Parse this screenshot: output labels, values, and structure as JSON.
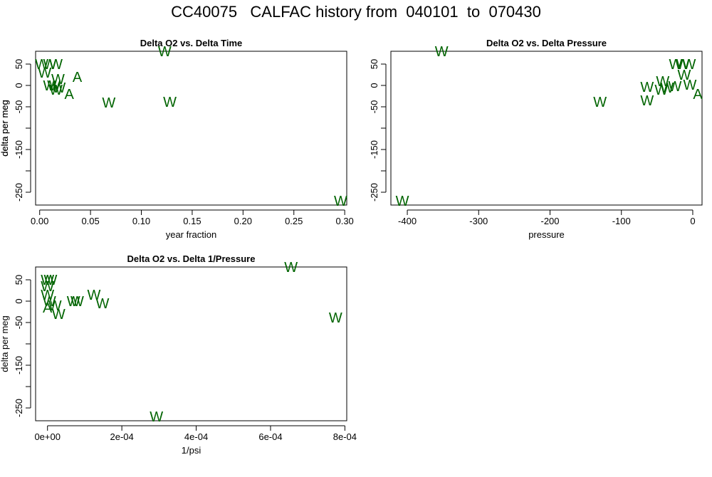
{
  "title": "CC40075   CALFAC history from  040101  to  070430",
  "chart_data": [
    {
      "type": "scatter",
      "title": "Delta O2 vs. Delta Time",
      "xlabel": "year fraction",
      "ylabel": "delta per meg",
      "xlim": [
        -0.004,
        0.302
      ],
      "ylim": [
        -280,
        80
      ],
      "xticks": [
        {
          "value": 0.0,
          "label": "0.00"
        },
        {
          "value": 0.05,
          "label": "0.05"
        },
        {
          "value": 0.1,
          "label": "0.10"
        },
        {
          "value": 0.15,
          "label": "0.15"
        },
        {
          "value": 0.2,
          "label": "0.20"
        },
        {
          "value": 0.25,
          "label": "0.25"
        },
        {
          "value": 0.3,
          "label": "0.30"
        }
      ],
      "yticks": [
        {
          "value": 50,
          "label": "50"
        },
        {
          "value": 0,
          "label": "0"
        },
        {
          "value": -50,
          "label": "-50"
        },
        {
          "value": -100,
          "label": ""
        },
        {
          "value": -150,
          "label": "-150"
        },
        {
          "value": -200,
          "label": ""
        },
        {
          "value": -250,
          "label": "-250"
        }
      ],
      "points": [
        {
          "x": 0.002,
          "y": 50,
          "label": "W"
        },
        {
          "x": 0.005,
          "y": 30,
          "label": "W"
        },
        {
          "x": 0.01,
          "y": 50,
          "label": "W"
        },
        {
          "x": 0.016,
          "y": 50,
          "label": "W"
        },
        {
          "x": 0.018,
          "y": 15,
          "label": "W"
        },
        {
          "x": 0.01,
          "y": 0,
          "label": "W"
        },
        {
          "x": 0.014,
          "y": 0,
          "label": "W"
        },
        {
          "x": 0.016,
          "y": -10,
          "label": "W"
        },
        {
          "x": 0.019,
          "y": -5,
          "label": "W"
        },
        {
          "x": 0.037,
          "y": 20,
          "label": "A"
        },
        {
          "x": 0.029,
          "y": -20,
          "label": "A"
        },
        {
          "x": 0.068,
          "y": -40,
          "label": "W"
        },
        {
          "x": 0.123,
          "y": 80,
          "label": "W"
        },
        {
          "x": 0.128,
          "y": -38,
          "label": "W"
        },
        {
          "x": 0.296,
          "y": -270,
          "label": "W"
        }
      ]
    },
    {
      "type": "scatter",
      "title": "Delta O2 vs. Delta Pressure",
      "xlabel": "pressure",
      "ylabel": "delta per meg",
      "xlim": [
        -423,
        13
      ],
      "ylim": [
        -280,
        80
      ],
      "xticks": [
        {
          "value": -400,
          "label": "-400"
        },
        {
          "value": -300,
          "label": "-300"
        },
        {
          "value": -200,
          "label": "-200"
        },
        {
          "value": -100,
          "label": "-100"
        },
        {
          "value": 0,
          "label": "0"
        }
      ],
      "yticks": [
        {
          "value": 50,
          "label": "50"
        },
        {
          "value": 0,
          "label": "0"
        },
        {
          "value": -50,
          "label": "-50"
        },
        {
          "value": -100,
          "label": ""
        },
        {
          "value": -150,
          "label": "-150"
        },
        {
          "value": -200,
          "label": ""
        },
        {
          "value": -250,
          "label": "-250"
        }
      ],
      "points": [
        {
          "x": -352,
          "y": 80,
          "label": "W"
        },
        {
          "x": -130,
          "y": -38,
          "label": "W"
        },
        {
          "x": -407,
          "y": -270,
          "label": "W"
        },
        {
          "x": -64,
          "y": -3,
          "label": "W"
        },
        {
          "x": -64,
          "y": -35,
          "label": "W"
        },
        {
          "x": -42,
          "y": 10,
          "label": "W"
        },
        {
          "x": -44,
          "y": -10,
          "label": "W"
        },
        {
          "x": -36,
          "y": -5,
          "label": "W"
        },
        {
          "x": -25,
          "y": -2,
          "label": "W"
        },
        {
          "x": -24,
          "y": 50,
          "label": "W"
        },
        {
          "x": -14,
          "y": 50,
          "label": "W"
        },
        {
          "x": -5,
          "y": 50,
          "label": "W"
        },
        {
          "x": -12,
          "y": 25,
          "label": "W"
        },
        {
          "x": -4,
          "y": 2,
          "label": "W"
        },
        {
          "x": 7,
          "y": -20,
          "label": "A"
        }
      ]
    },
    {
      "type": "scatter",
      "title": "Delta O2 vs. Delta 1/Pressure",
      "xlabel": "1/psi",
      "ylabel": "delta per meg",
      "xlim": [
        -3.2e-05,
        0.000805
      ],
      "ylim": [
        -280,
        80
      ],
      "xticks": [
        {
          "value": 0,
          "label": "0e+00"
        },
        {
          "value": 0.0002,
          "label": "2e-04"
        },
        {
          "value": 0.0004,
          "label": "4e-04"
        },
        {
          "value": 0.0006,
          "label": "6e-04"
        },
        {
          "value": 0.0008,
          "label": "8e-04"
        }
      ],
      "yticks": [
        {
          "value": 50,
          "label": "50"
        },
        {
          "value": 0,
          "label": "0"
        },
        {
          "value": -50,
          "label": "-50"
        },
        {
          "value": -100,
          "label": ""
        },
        {
          "value": -150,
          "label": "-150"
        },
        {
          "value": -200,
          "label": ""
        },
        {
          "value": -250,
          "label": "-250"
        }
      ],
      "points": [
        {
          "x": 0.0,
          "y": 50,
          "label": "W"
        },
        {
          "x": 8e-06,
          "y": 50,
          "label": "W"
        },
        {
          "x": 0.0,
          "y": 35,
          "label": "W"
        },
        {
          "x": 0.0,
          "y": 15,
          "label": "W"
        },
        {
          "x": 5e-06,
          "y": 0,
          "label": "W"
        },
        {
          "x": 2e-05,
          "y": -10,
          "label": "W"
        },
        {
          "x": 3e-05,
          "y": -30,
          "label": "W"
        },
        {
          "x": 0.0,
          "y": -15,
          "label": "A"
        },
        {
          "x": 7e-05,
          "y": 0,
          "label": "W"
        },
        {
          "x": 8e-05,
          "y": 0,
          "label": "W"
        },
        {
          "x": 0.000125,
          "y": 15,
          "label": "W"
        },
        {
          "x": 0.000148,
          "y": -5,
          "label": "W"
        },
        {
          "x": 0.000293,
          "y": -270,
          "label": "W"
        },
        {
          "x": 0.000655,
          "y": 80,
          "label": "W"
        },
        {
          "x": 0.000775,
          "y": -38,
          "label": "W"
        }
      ]
    }
  ]
}
